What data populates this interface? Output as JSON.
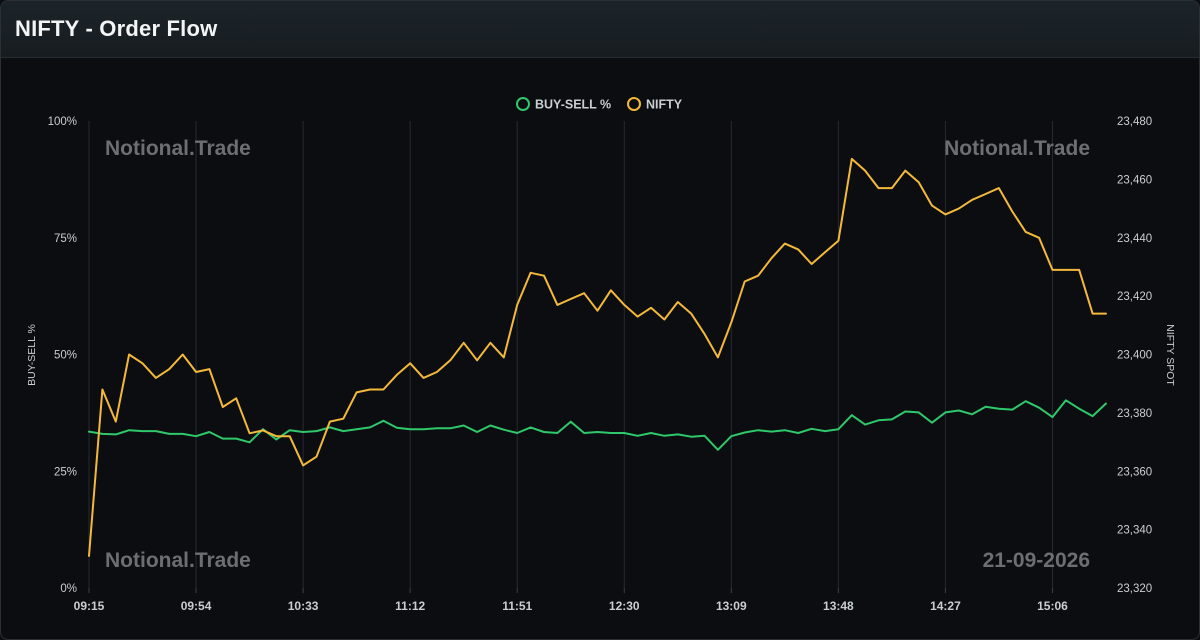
{
  "header": {
    "title": "NIFTY - Order Flow"
  },
  "watermarks": {
    "top_left": "Notional.Trade",
    "top_right": "Notional.Trade",
    "bottom_left": "Notional.Trade",
    "bottom_right": "21-09-2026"
  },
  "colors": {
    "buy_sell": "#2fc86a",
    "nifty": "#f4b93a",
    "grid": "#262b30",
    "tick_text": "#c9ced3",
    "watermark": "#6b6f73"
  },
  "chart_data": {
    "type": "line",
    "legend": {
      "placement": "top-center",
      "entries": [
        "BUY-SELL %",
        "NIFTY"
      ]
    },
    "x_ticks": [
      "09:15",
      "09:54",
      "10:33",
      "11:12",
      "11:51",
      "12:30",
      "13:09",
      "13:48",
      "14:27",
      "15:06"
    ],
    "x_tick_indices": [
      0,
      8,
      16,
      24,
      32,
      40,
      48,
      56,
      64,
      72
    ],
    "left_axis": {
      "label": "BUY-SELL %",
      "ticks": [
        "0%",
        "25%",
        "50%",
        "75%",
        "100%"
      ],
      "range": [
        0,
        100
      ]
    },
    "right_axis": {
      "label": "NIFTY SPOT",
      "ticks": [
        "23,320",
        "23,340",
        "23,360",
        "23,380",
        "23,400",
        "23,420",
        "23,440",
        "23,460",
        "23,480"
      ],
      "range": [
        23320,
        23480
      ]
    },
    "grid": "vertical",
    "series": [
      {
        "name": "BUY-SELL %",
        "axis": "left",
        "values": [
          33.5,
          33.0,
          32.9,
          33.8,
          33.6,
          33.6,
          33.0,
          33.0,
          32.5,
          33.4,
          32.0,
          32.0,
          31.2,
          34.0,
          31.8,
          33.8,
          33.4,
          33.6,
          34.4,
          33.6,
          34.0,
          34.4,
          35.8,
          34.3,
          34.0,
          34.0,
          34.2,
          34.2,
          34.8,
          33.4,
          34.8,
          33.9,
          33.2,
          34.4,
          33.4,
          33.2,
          35.6,
          33.2,
          33.4,
          33.2,
          33.2,
          32.6,
          33.2,
          32.6,
          32.9,
          32.4,
          32.6,
          29.6,
          32.5,
          33.3,
          33.8,
          33.5,
          33.8,
          33.2,
          34.1,
          33.6,
          34.0,
          37.0,
          35.0,
          35.9,
          36.1,
          37.8,
          37.6,
          35.4,
          37.6,
          38.0,
          37.2,
          38.8,
          38.4,
          38.2,
          40.0,
          38.6,
          36.6,
          40.2,
          38.4,
          36.8,
          39.5
        ]
      },
      {
        "name": "NIFTY",
        "axis": "right",
        "values": [
          23331,
          23388,
          23377,
          23400,
          23397,
          23392,
          23395,
          23400,
          23394,
          23395,
          23382,
          23385,
          23373,
          23374,
          23372,
          23372,
          23362,
          23365,
          23377,
          23378,
          23387,
          23388,
          23388,
          23393,
          23397,
          23392,
          23394,
          23398,
          23404,
          23398,
          23404,
          23399,
          23417,
          23428,
          23427,
          23417,
          23419,
          23421,
          23415,
          23422,
          23417,
          23413,
          23416,
          23412,
          23418,
          23414,
          23407,
          23399,
          23411,
          23425,
          23427,
          23433,
          23438,
          23436,
          23431,
          23435,
          23439,
          23467,
          23463,
          23457,
          23457,
          23463,
          23459,
          23451,
          23448,
          23450,
          23453,
          23455,
          23457,
          23449,
          23442,
          23440,
          23429,
          23429,
          23429,
          23414,
          23414
        ]
      }
    ]
  }
}
